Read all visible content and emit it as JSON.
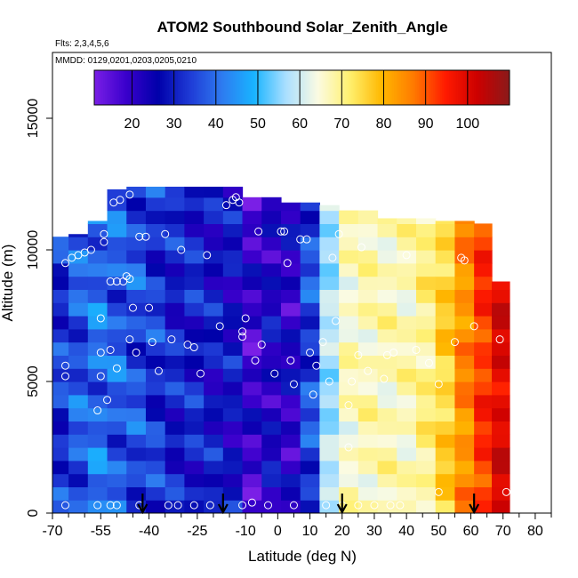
{
  "chart_data": {
    "type": "heatmap",
    "title": "ATOM2 Southbound Solar_Zenith_Angle",
    "flights_note": "Flts: 2,3,4,5,6",
    "mmdd_note": "MMDD: 0129,0201,0203,0205,0210",
    "xlabel": "Latitude (deg N)",
    "ylabel": "Altitude (m)",
    "xlim": [
      -70,
      85
    ],
    "ylim": [
      0,
      17500
    ],
    "x_ticks": [
      -70,
      -55,
      -40,
      -25,
      -10,
      0,
      10,
      20,
      30,
      40,
      50,
      60,
      70,
      80
    ],
    "x_minor_ticks": [
      -65,
      -60,
      -50,
      -45,
      -35,
      -30,
      -20,
      -15,
      -5,
      5,
      15,
      25,
      35,
      45,
      55,
      65,
      75,
      85
    ],
    "y_ticks": [
      0,
      5000,
      10000,
      15000
    ],
    "colorbar": {
      "min": 11,
      "max": 110,
      "ticks": [
        20,
        30,
        40,
        50,
        60,
        70,
        80,
        90,
        100
      ],
      "colors": [
        "#7a1fe6",
        "#3a00cc",
        "#0000aa",
        "#1f3bd6",
        "#2e7bf0",
        "#18b4ff",
        "#aadfff",
        "#fbfbe2",
        "#fff06e",
        "#ffb800",
        "#ff7a00",
        "#ff1a00",
        "#cc0000",
        "#8a1a1a"
      ]
    },
    "profile_columns": [
      {
        "lat": -68,
        "zmin": 0,
        "zmax": 10500,
        "base": 33
      },
      {
        "lat": -62,
        "zmin": 0,
        "zmax": 10600,
        "base": 37
      },
      {
        "lat": -56,
        "zmin": 0,
        "zmax": 11100,
        "base": 40
      },
      {
        "lat": -50,
        "zmin": 0,
        "zmax": 12300,
        "base": 38
      },
      {
        "lat": -44,
        "zmin": 0,
        "zmax": 12400,
        "base": 36
      },
      {
        "lat": -38,
        "zmin": 0,
        "zmax": 12400,
        "base": 33
      },
      {
        "lat": -32,
        "zmin": 0,
        "zmax": 12400,
        "base": 30
      },
      {
        "lat": -26,
        "zmin": 0,
        "zmax": 12400,
        "base": 30
      },
      {
        "lat": -20,
        "zmin": 0,
        "zmax": 12400,
        "base": 28
      },
      {
        "lat": -14,
        "zmin": 0,
        "zmax": 12400,
        "base": 27
      },
      {
        "lat": -8,
        "zmin": 0,
        "zmax": 12000,
        "base": 19
      },
      {
        "lat": -2,
        "zmin": 0,
        "zmax": 12000,
        "base": 24
      },
      {
        "lat": 4,
        "zmin": 0,
        "zmax": 11800,
        "base": 22
      },
      {
        "lat": 10,
        "zmin": 0,
        "zmax": 11800,
        "base": 35
      },
      {
        "lat": 16,
        "zmin": 0,
        "zmax": 11700,
        "base": 57
      },
      {
        "lat": 22,
        "zmin": 0,
        "zmax": 11500,
        "base": 66
      },
      {
        "lat": 28,
        "zmin": 0,
        "zmax": 11500,
        "base": 67
      },
      {
        "lat": 34,
        "zmin": 0,
        "zmax": 11200,
        "base": 67
      },
      {
        "lat": 40,
        "zmin": 0,
        "zmax": 11200,
        "base": 67
      },
      {
        "lat": 46,
        "zmin": 0,
        "zmax": 11200,
        "base": 70
      },
      {
        "lat": 52,
        "zmin": 0,
        "zmax": 11100,
        "base": 76
      },
      {
        "lat": 58,
        "zmin": 0,
        "zmax": 11100,
        "base": 85
      },
      {
        "lat": 64,
        "zmin": 0,
        "zmax": 11000,
        "base": 93
      },
      {
        "lat": 69,
        "zmin": 0,
        "zmax": 8800,
        "base": 100
      }
    ],
    "sample_points": [
      [
        -66,
        300
      ],
      [
        -66,
        5200
      ],
      [
        -66,
        5600
      ],
      [
        -66,
        9500
      ],
      [
        -64,
        9700
      ],
      [
        -62,
        9800
      ],
      [
        -60,
        9900
      ],
      [
        -58,
        10000
      ],
      [
        -56,
        300
      ],
      [
        -56,
        3900
      ],
      [
        -55,
        5200
      ],
      [
        -55,
        6100
      ],
      [
        -55,
        7400
      ],
      [
        -54,
        10300
      ],
      [
        -54,
        10600
      ],
      [
        -53,
        4300
      ],
      [
        -52,
        300
      ],
      [
        -52,
        6200
      ],
      [
        -52,
        8800
      ],
      [
        -51,
        11800
      ],
      [
        -50,
        300
      ],
      [
        -50,
        5500
      ],
      [
        -50,
        8800
      ],
      [
        -49,
        11900
      ],
      [
        -48,
        8800
      ],
      [
        -47,
        9000
      ],
      [
        -46,
        6600
      ],
      [
        -46,
        8900
      ],
      [
        -46,
        12100
      ],
      [
        -45,
        7800
      ],
      [
        -44,
        6100
      ],
      [
        -43,
        300
      ],
      [
        -43,
        10500
      ],
      [
        -41,
        10500
      ],
      [
        -40,
        7800
      ],
      [
        -39,
        6500
      ],
      [
        -37,
        5400
      ],
      [
        -35,
        10600
      ],
      [
        -34,
        300
      ],
      [
        -33,
        6600
      ],
      [
        -31,
        300
      ],
      [
        -30,
        10000
      ],
      [
        -28,
        6400
      ],
      [
        -26,
        300
      ],
      [
        -26,
        6300
      ],
      [
        -24,
        5300
      ],
      [
        -22,
        9800
      ],
      [
        -21,
        300
      ],
      [
        -18,
        7100
      ],
      [
        -16,
        11700
      ],
      [
        -14,
        11900
      ],
      [
        -13,
        12000
      ],
      [
        -12,
        11800
      ],
      [
        -11,
        6700
      ],
      [
        -11,
        6900
      ],
      [
        -11,
        300
      ],
      [
        -10,
        7400
      ],
      [
        -8,
        400
      ],
      [
        -7,
        5800
      ],
      [
        -6,
        10700
      ],
      [
        -5,
        6400
      ],
      [
        -3,
        300
      ],
      [
        -1,
        5300
      ],
      [
        1,
        10700
      ],
      [
        2,
        10700
      ],
      [
        3,
        9500
      ],
      [
        4,
        5800
      ],
      [
        5,
        4900
      ],
      [
        5,
        300
      ],
      [
        7,
        10400
      ],
      [
        9,
        10400
      ],
      [
        10,
        6100
      ],
      [
        11,
        4500
      ],
      [
        12,
        5600
      ],
      [
        14,
        6500
      ],
      [
        15,
        300
      ],
      [
        16,
        5000
      ],
      [
        17,
        9700
      ],
      [
        18,
        7300
      ],
      [
        19,
        10600
      ],
      [
        20,
        300
      ],
      [
        22,
        2500
      ],
      [
        22,
        4100
      ],
      [
        23,
        5000
      ],
      [
        25,
        300
      ],
      [
        25,
        6000
      ],
      [
        26,
        10100
      ],
      [
        28,
        5400
      ],
      [
        30,
        300
      ],
      [
        33,
        5100
      ],
      [
        34,
        6000
      ],
      [
        35,
        300
      ],
      [
        36,
        6100
      ],
      [
        38,
        300
      ],
      [
        40,
        9800
      ],
      [
        43,
        6200
      ],
      [
        47,
        5700
      ],
      [
        50,
        4900
      ],
      [
        50,
        800
      ],
      [
        55,
        6500
      ],
      [
        57,
        9700
      ],
      [
        58,
        9600
      ],
      [
        61,
        7100
      ],
      [
        64,
        11300
      ],
      [
        66,
        11300
      ],
      [
        69,
        6600
      ],
      [
        71,
        800
      ]
    ],
    "arrow_markers_lat": [
      -42,
      -17,
      20,
      61
    ]
  }
}
